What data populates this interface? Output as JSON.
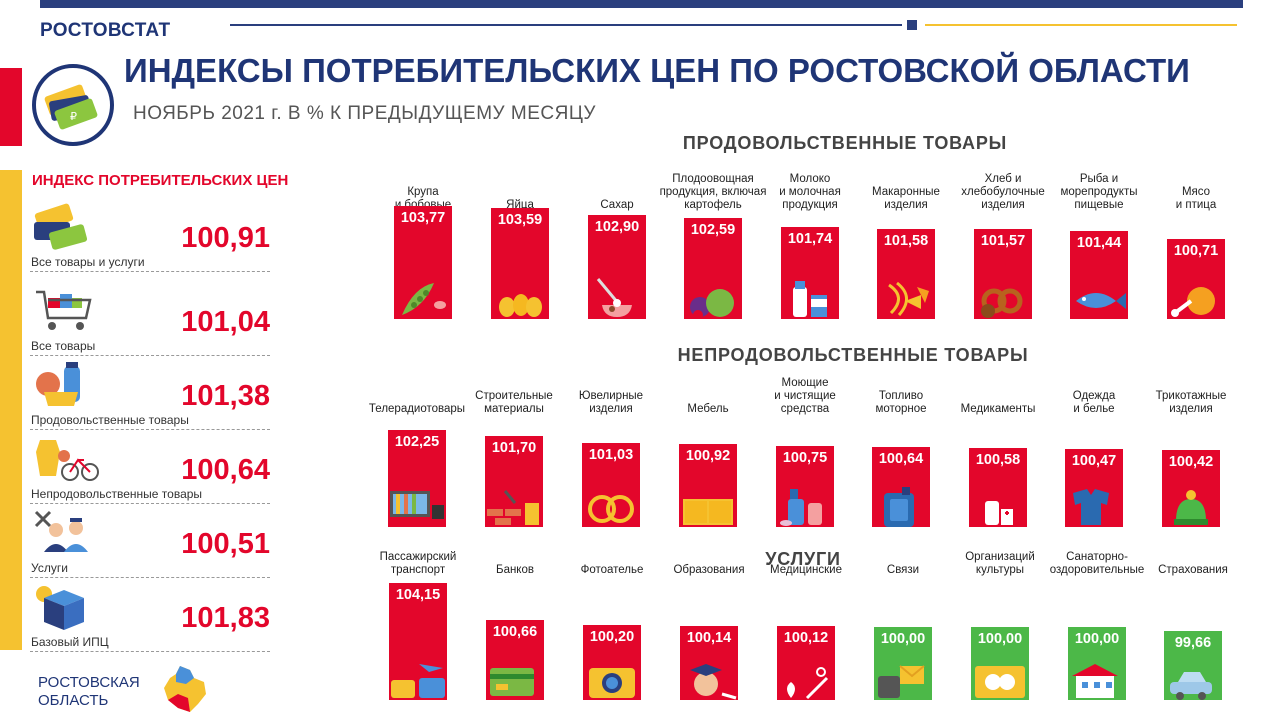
{
  "header": {
    "brand": "РОСТОВСТАТ",
    "title": "ИНДЕКСЫ ПОТРЕБИТЕЛЬСКИХ ЦЕН ПО РОСТОВСКОЙ ОБЛАСТИ",
    "subtitle": "НОЯБРЬ 2021 г. В % К ПРЕДЫДУЩЕМУ  МЕСЯЦУ"
  },
  "colors": {
    "accent_red": "#e3062b",
    "accent_green": "#4cb848",
    "navy": "#1f3576",
    "yellow": "#f5c230"
  },
  "sidebar": {
    "title": "ИНДЕКС ПОТРЕБИТЕЛЬСКИХ ЦЕН",
    "items": [
      {
        "label": "Все товары и услуги",
        "value": "100,91",
        "icon": "price-tags-icon"
      },
      {
        "label": "Все товары",
        "value": "101,04",
        "icon": "shopping-cart-icon"
      },
      {
        "label": "Продовольственные  товары",
        "value": "101,38",
        "icon": "groceries-icon"
      },
      {
        "label": "Непродовольственные  товары",
        "value": "100,64",
        "icon": "bicycle-clothes-icon"
      },
      {
        "label": "Услуги",
        "value": "100,51",
        "icon": "service-workers-icon"
      },
      {
        "label": "Базовый  ИПЦ",
        "value": "101,83",
        "icon": "base-box-icon"
      }
    ]
  },
  "footer": {
    "region_line1": "РОСТОВСКАЯ",
    "region_line2": "ОБЛАСТЬ"
  },
  "chart_data": [
    {
      "type": "bar",
      "title": "ПРОДОВОЛЬСТВЕННЫЕ  ТОВАРЫ",
      "categories": [
        "Крупа и бобовые",
        "Яйца",
        "Сахар",
        "Плодоовощная продукция, включая картофель",
        "Молоко и молочная продукция",
        "Макаронные изделия",
        "Хлеб и хлебобулочные изделия",
        "Рыба и морепродукты пищевые",
        "Мясо и птица"
      ],
      "labels": [
        [
          "Крупа",
          "и бобовые"
        ],
        [
          "Яйца"
        ],
        [
          "Сахар"
        ],
        [
          "Плодоовощная",
          "продукция, включая",
          "картофель"
        ],
        [
          "Молоко",
          "и молочная",
          "продукция"
        ],
        [
          "Макаронные",
          "изделия"
        ],
        [
          "Хлеб и",
          "хлебобулочные",
          "изделия"
        ],
        [
          "Рыба и",
          "морепродукты",
          "пищевые"
        ],
        [
          "Мясо",
          "и птица"
        ]
      ],
      "values": [
        103.77,
        103.59,
        102.9,
        102.59,
        101.74,
        101.58,
        101.57,
        101.44,
        100.71
      ],
      "value_labels": [
        "103,77",
        "103,59",
        "102,90",
        "102,59",
        "101,74",
        "101,58",
        "101,57",
        "101,44",
        "100,71"
      ],
      "icons": [
        "peas-icon",
        "eggs-icon",
        "sugar-spoon-icon",
        "vegetables-icon",
        "milk-icon",
        "pasta-icon",
        "pretzel-icon",
        "fish-icon",
        "chicken-icon"
      ],
      "colors": [
        "#e3062b",
        "#e3062b",
        "#e3062b",
        "#e3062b",
        "#e3062b",
        "#e3062b",
        "#e3062b",
        "#e3062b",
        "#e3062b"
      ]
    },
    {
      "type": "bar",
      "title": "НЕПРОДОВОЛЬСТВЕННЫЕ  ТОВАРЫ",
      "categories": [
        "Телерадиотовары",
        "Строительные материалы",
        "Ювелирные изделия",
        "Мебель",
        "Моющие и чистящие средства",
        "Топливо моторное",
        "Медикаменты",
        "Одежда и белье",
        "Трикотажные изделия"
      ],
      "labels": [
        [
          "Телерадиотовары"
        ],
        [
          "Строительные",
          "материалы"
        ],
        [
          "Ювелирные",
          "изделия"
        ],
        [
          "Мебель"
        ],
        [
          "Моющие",
          "и чистящие",
          "средства"
        ],
        [
          "Топливо",
          "моторное"
        ],
        [
          "Медикаменты"
        ],
        [
          "Одежда",
          "и белье"
        ],
        [
          "Трикотажные",
          "изделия"
        ]
      ],
      "values": [
        102.25,
        101.7,
        101.03,
        100.92,
        100.75,
        100.64,
        100.58,
        100.47,
        100.42
      ],
      "value_labels": [
        "102,25",
        "101,70",
        "101,03",
        "100,92",
        "100,75",
        "100,64",
        "100,58",
        "100,47",
        "100,42"
      ],
      "icons": [
        "tv-icon",
        "bricks-icon",
        "rings-icon",
        "furniture-icon",
        "detergent-icon",
        "fuel-canister-icon",
        "medicine-icon",
        "clothes-icon",
        "knit-hat-icon"
      ],
      "colors": [
        "#e3062b",
        "#e3062b",
        "#e3062b",
        "#e3062b",
        "#e3062b",
        "#e3062b",
        "#e3062b",
        "#e3062b",
        "#e3062b"
      ]
    },
    {
      "type": "bar",
      "title": "УСЛУГИ",
      "categories": [
        "Пассажирский транспорт",
        "Банков",
        "Фотоателье",
        "Образования",
        "Медицинские",
        "Связи",
        "Организаций культуры",
        "Санаторно-оздоровительные",
        "Страхования"
      ],
      "labels": [
        [
          "Пассажирский",
          "транспорт"
        ],
        [
          "Банков"
        ],
        [
          "Фотоателье"
        ],
        [
          "Образования"
        ],
        [
          "Медицинские"
        ],
        [
          "Связи"
        ],
        [
          "Организаций",
          "культуры"
        ],
        [
          "Санаторно-",
          "оздоровительные"
        ],
        [
          "Страхования"
        ]
      ],
      "values": [
        104.15,
        100.66,
        100.2,
        100.14,
        100.12,
        100.0,
        100.0,
        100.0,
        99.66
      ],
      "value_labels": [
        "104,15",
        "100,66",
        "100,20",
        "100,14",
        "100,12",
        "100,00",
        "100,00",
        "100,00",
        "99,66"
      ],
      "icons": [
        "transport-icon",
        "bank-card-icon",
        "camera-icon",
        "graduate-icon",
        "medical-icon",
        "phone-icon",
        "theater-masks-icon",
        "sanatorium-icon",
        "car-insurance-icon"
      ],
      "colors": [
        "#e3062b",
        "#e3062b",
        "#e3062b",
        "#e3062b",
        "#e3062b",
        "#4cb848",
        "#4cb848",
        "#4cb848",
        "#4cb848"
      ]
    }
  ]
}
